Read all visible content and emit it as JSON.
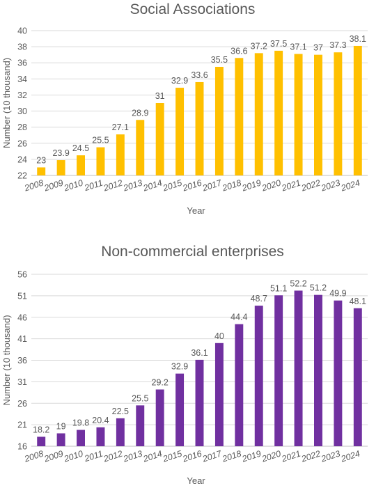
{
  "chart_data": [
    {
      "type": "bar",
      "title": "Social Associations",
      "xlabel": "Year",
      "ylabel": "Number (10 thousand)",
      "categories": [
        "2008",
        "2009",
        "2010",
        "2011",
        "2012",
        "2013",
        "2014",
        "2015",
        "2016",
        "2017",
        "2018",
        "2019",
        "2020",
        "2021",
        "2022",
        "2023",
        "2024"
      ],
      "values": [
        23,
        23.9,
        24.5,
        25.5,
        27.1,
        28.9,
        31,
        32.9,
        33.6,
        35.5,
        36.6,
        37.2,
        37.5,
        37.1,
        37,
        37.3,
        38.1
      ],
      "ylim": [
        22,
        40
      ],
      "yticks": [
        22,
        24,
        26,
        28,
        30,
        32,
        34,
        36,
        38,
        40
      ],
      "color": "#ffc000",
      "grid": true
    },
    {
      "type": "bar",
      "title": "Non-commercial enterprises",
      "xlabel": "Year",
      "ylabel": "Number (10 thousand)",
      "categories": [
        "2008",
        "2009",
        "2010",
        "2011",
        "2012",
        "2013",
        "2014",
        "2015",
        "2016",
        "2017",
        "2018",
        "2019",
        "2020",
        "2021",
        "2022",
        "2023",
        "2024"
      ],
      "values": [
        18.2,
        19,
        19.8,
        20.4,
        22.5,
        25.5,
        29.2,
        32.9,
        36.1,
        40,
        44.4,
        48.7,
        51.1,
        52.2,
        51.2,
        49.9,
        48.1
      ],
      "ylim": [
        16,
        56
      ],
      "yticks": [
        16,
        21,
        26,
        31,
        36,
        41,
        46,
        51,
        56
      ],
      "color": "#7030a0",
      "grid": true
    }
  ]
}
